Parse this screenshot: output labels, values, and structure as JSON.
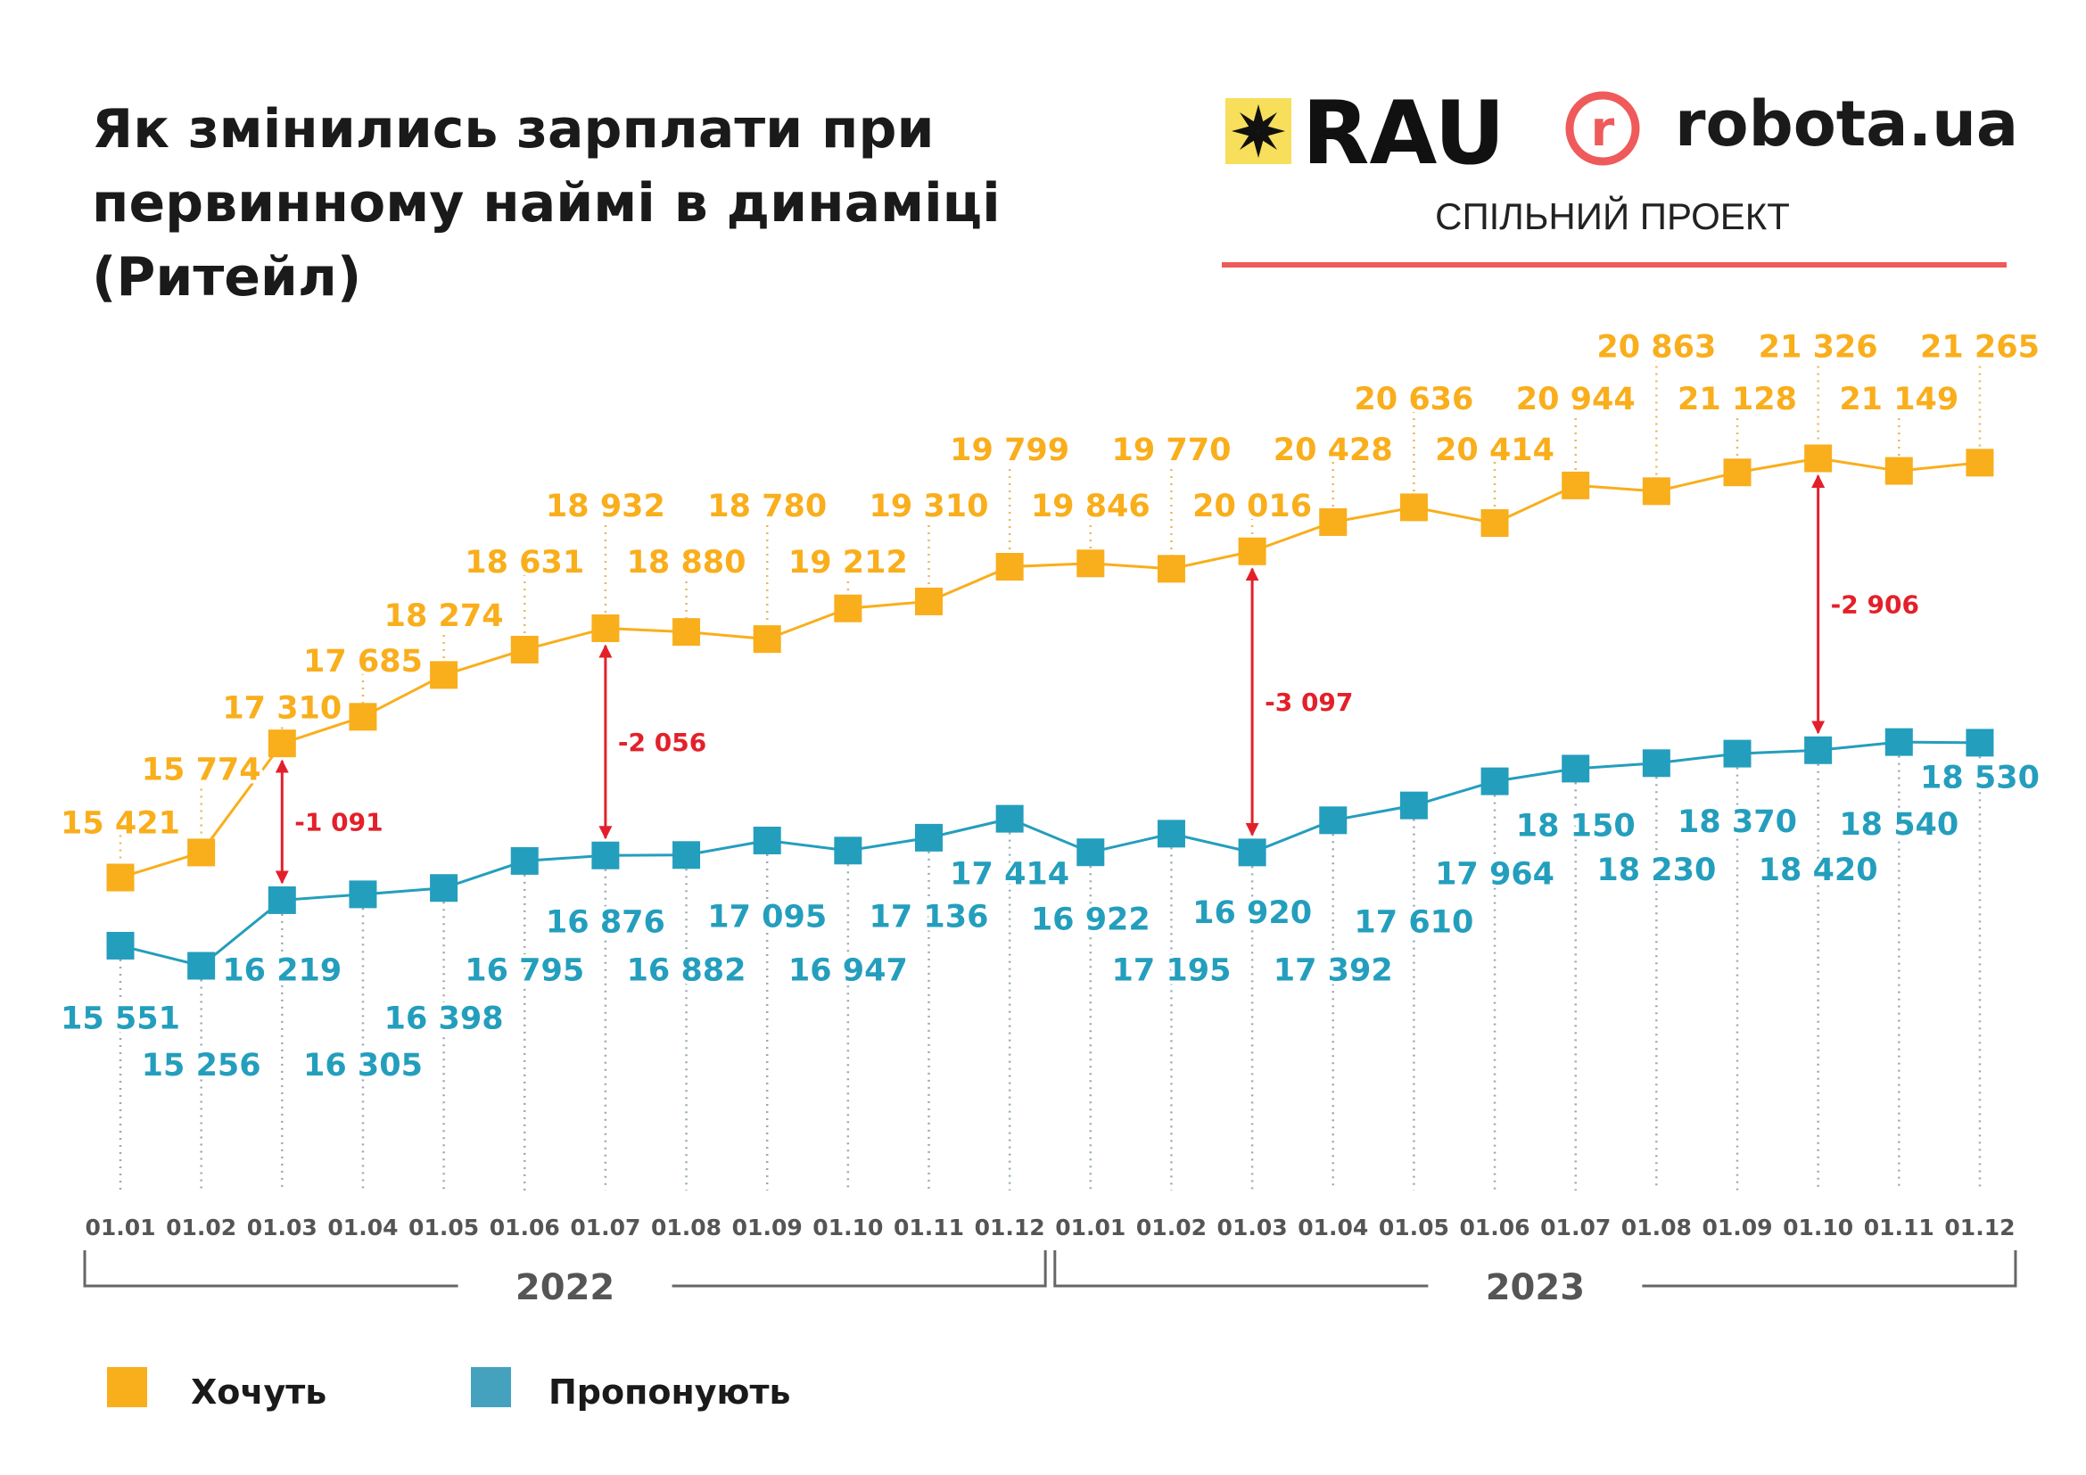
{
  "title_lines": [
    "Як змінились зарплати при",
    "первинному наймі в динаміці",
    "(Ритейл)"
  ],
  "logos": {
    "rau": "RAU",
    "robota": "robota.ua",
    "robota_letter": "r",
    "joint_project": "СПІЛЬНИЙ ПРОЕКТ"
  },
  "colors": {
    "wanted": "#F9AE1C",
    "offered": "#249EBD",
    "difference": "#E3202A",
    "rau_yellow": "#F7DE5B",
    "robota_red": "#EF5A5A"
  },
  "chart_data": {
    "type": "line",
    "title": "Як змінились зарплати при первинному наймі в динаміці (Ритейл)",
    "categories": [
      "01.01",
      "01.02",
      "01.03",
      "01.04",
      "01.05",
      "01.06",
      "01.07",
      "01.08",
      "01.09",
      "01.10",
      "01.11",
      "01.12",
      "01.01",
      "01.02",
      "01.03",
      "01.04",
      "01.05",
      "01.06",
      "01.07",
      "01.08",
      "01.09",
      "01.10",
      "01.11",
      "01.12"
    ],
    "year_groups": [
      {
        "label": "2022",
        "from": 0,
        "to": 11
      },
      {
        "label": "2023",
        "from": 12,
        "to": 23
      }
    ],
    "series": [
      {
        "name": "Хочуть",
        "color": "#F9AE1C",
        "marker": "square",
        "values": [
          15421,
          15774,
          17310,
          17685,
          18274,
          18631,
          18932,
          18880,
          18780,
          19212,
          19310,
          19799,
          19846,
          19770,
          20016,
          20428,
          20636,
          20414,
          20944,
          20863,
          21128,
          21326,
          21149,
          21265
        ]
      },
      {
        "name": "Пропонують",
        "color": "#249EBD",
        "marker": "square",
        "values": [
          15551,
          15256,
          16219,
          16305,
          16398,
          16795,
          16876,
          16882,
          17095,
          16947,
          17136,
          17414,
          16922,
          17195,
          16920,
          17392,
          17610,
          17964,
          18150,
          18230,
          18370,
          18420,
          18540,
          18530
        ]
      }
    ],
    "differences": [
      {
        "index": 2,
        "value": -1091
      },
      {
        "index": 6,
        "value": -2056
      },
      {
        "index": 14,
        "value": -3097
      },
      {
        "index": 21,
        "value": -2906
      }
    ],
    "data_labels": true,
    "grid": false,
    "legend": "bottom-left"
  }
}
